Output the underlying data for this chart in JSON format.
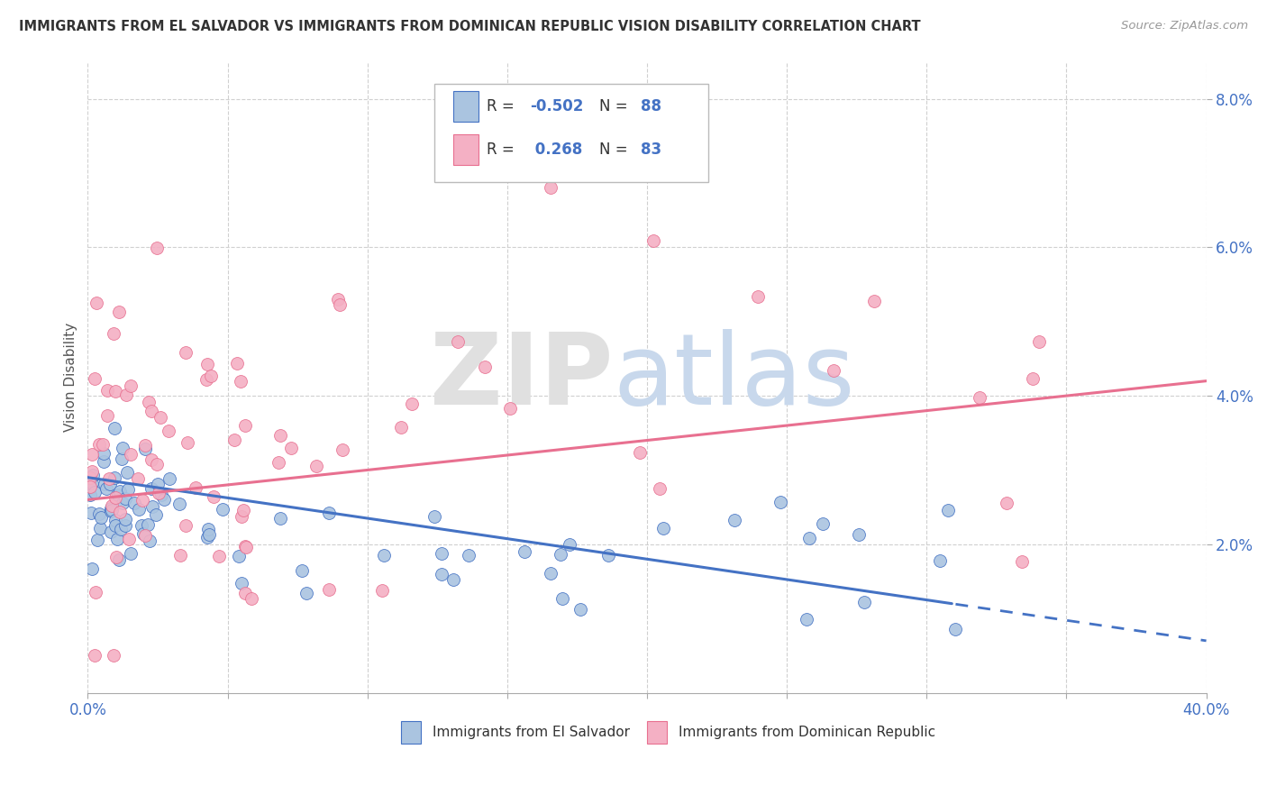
{
  "title": "IMMIGRANTS FROM EL SALVADOR VS IMMIGRANTS FROM DOMINICAN REPUBLIC VISION DISABILITY CORRELATION CHART",
  "source": "Source: ZipAtlas.com",
  "ylabel": "Vision Disability",
  "y_ticks": [
    0.02,
    0.04,
    0.06,
    0.08
  ],
  "y_tick_labels": [
    "2.0%",
    "4.0%",
    "6.0%",
    "8.0%"
  ],
  "color_blue": "#aac4e0",
  "color_pink": "#f4b0c4",
  "line_color_blue": "#4472c4",
  "line_color_pink": "#e87090",
  "label1": "Immigrants from El Salvador",
  "label2": "Immigrants from Dominican Republic",
  "r1": "-0.502",
  "n1": "88",
  "r2": "0.268",
  "n2": "83",
  "blue_intercept": 0.029,
  "blue_slope": -0.055,
  "pink_intercept": 0.026,
  "pink_slope": 0.04
}
